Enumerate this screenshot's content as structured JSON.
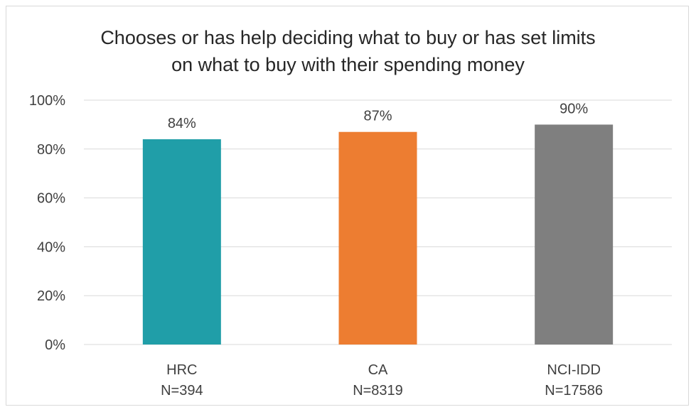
{
  "chart_data": {
    "type": "bar",
    "title_lines": [
      "Chooses or has help deciding what to buy or has set limits",
      "on what to buy with their spending money"
    ],
    "categories": [
      "HRC",
      "CA",
      "NCI-IDD"
    ],
    "category_sublabels": [
      "N=394",
      "N=8319",
      "N=17586"
    ],
    "values": [
      84,
      87,
      90
    ],
    "data_labels": [
      "84%",
      "87%",
      "90%"
    ],
    "colors": [
      "#209ea8",
      "#ed7d31",
      "#7f7f7f"
    ],
    "ylim": [
      0,
      100
    ],
    "yticks": [
      0,
      20,
      40,
      60,
      80,
      100
    ],
    "ytick_labels": [
      "0%",
      "20%",
      "40%",
      "60%",
      "80%",
      "100%"
    ],
    "grid": true,
    "gridline_color": "#d9d9d9"
  }
}
